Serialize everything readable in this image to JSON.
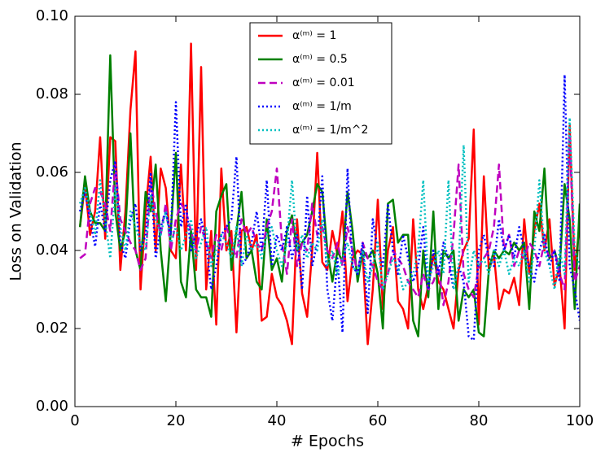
{
  "chart_data": {
    "type": "line",
    "xlabel": "# Epochs",
    "ylabel": "Loss on Validation",
    "xlim": [
      0,
      100
    ],
    "xticks": [
      0,
      20,
      40,
      60,
      80,
      100
    ],
    "ylim": [
      0,
      0.1
    ],
    "yticks": [
      {
        "value": 0,
        "label": "0.00"
      },
      0.02,
      0.04,
      0.06,
      0.08,
      {
        "value": 0.1,
        "label": "0.10"
      }
    ],
    "legend": "upper center",
    "x": [
      1,
      2,
      3,
      4,
      5,
      6,
      7,
      8,
      9,
      10,
      11,
      12,
      13,
      14,
      15,
      16,
      17,
      18,
      19,
      20,
      21,
      22,
      23,
      24,
      25,
      26,
      27,
      28,
      29,
      30,
      31,
      32,
      33,
      34,
      35,
      36,
      37,
      38,
      39,
      40,
      41,
      42,
      43,
      44,
      45,
      46,
      47,
      48,
      49,
      50,
      51,
      52,
      53,
      54,
      55,
      56,
      57,
      58,
      59,
      60,
      61,
      62,
      63,
      64,
      65,
      66,
      67,
      68,
      69,
      70,
      71,
      72,
      73,
      74,
      75,
      76,
      77,
      78,
      79,
      80,
      81,
      82,
      83,
      84,
      85,
      86,
      87,
      88,
      89,
      90,
      91,
      92,
      93,
      94,
      95,
      96,
      97,
      98,
      99,
      100
    ],
    "series": [
      {
        "name": "α⁽ᵐ⁾ = 1",
        "color": "#ff0000",
        "dash": "solid",
        "values": [
          0.046,
          0.057,
          0.044,
          0.05,
          0.069,
          0.043,
          0.069,
          0.068,
          0.035,
          0.05,
          0.076,
          0.091,
          0.03,
          0.05,
          0.064,
          0.04,
          0.061,
          0.056,
          0.04,
          0.038,
          0.062,
          0.04,
          0.093,
          0.035,
          0.087,
          0.03,
          0.045,
          0.021,
          0.061,
          0.04,
          0.045,
          0.019,
          0.045,
          0.046,
          0.04,
          0.044,
          0.022,
          0.023,
          0.034,
          0.028,
          0.026,
          0.022,
          0.016,
          0.048,
          0.029,
          0.023,
          0.04,
          0.065,
          0.037,
          0.035,
          0.045,
          0.039,
          0.05,
          0.027,
          0.038,
          0.04,
          0.039,
          0.016,
          0.03,
          0.053,
          0.025,
          0.04,
          0.046,
          0.027,
          0.025,
          0.02,
          0.048,
          0.03,
          0.025,
          0.031,
          0.039,
          0.032,
          0.03,
          0.025,
          0.02,
          0.035,
          0.04,
          0.043,
          0.071,
          0.021,
          0.059,
          0.035,
          0.039,
          0.025,
          0.03,
          0.029,
          0.033,
          0.026,
          0.048,
          0.034,
          0.045,
          0.052,
          0.04,
          0.048,
          0.031,
          0.036,
          0.02,
          0.072,
          0.035,
          0.047
        ]
      },
      {
        "name": "α⁽ᵐ⁾ = 0.5",
        "color": "#008000",
        "dash": "solid",
        "values": [
          0.046,
          0.059,
          0.05,
          0.047,
          0.047,
          0.045,
          0.09,
          0.05,
          0.04,
          0.045,
          0.07,
          0.04,
          0.035,
          0.055,
          0.05,
          0.062,
          0.04,
          0.027,
          0.045,
          0.065,
          0.032,
          0.028,
          0.045,
          0.03,
          0.028,
          0.028,
          0.023,
          0.05,
          0.054,
          0.057,
          0.035,
          0.045,
          0.055,
          0.038,
          0.04,
          0.032,
          0.03,
          0.048,
          0.035,
          0.038,
          0.032,
          0.045,
          0.049,
          0.04,
          0.042,
          0.044,
          0.05,
          0.057,
          0.055,
          0.04,
          0.032,
          0.04,
          0.037,
          0.055,
          0.045,
          0.032,
          0.04,
          0.038,
          0.04,
          0.034,
          0.02,
          0.052,
          0.053,
          0.042,
          0.044,
          0.044,
          0.022,
          0.018,
          0.04,
          0.028,
          0.05,
          0.025,
          0.04,
          0.038,
          0.04,
          0.022,
          0.03,
          0.028,
          0.03,
          0.019,
          0.018,
          0.035,
          0.04,
          0.038,
          0.04,
          0.039,
          0.042,
          0.04,
          0.042,
          0.025,
          0.05,
          0.045,
          0.061,
          0.038,
          0.04,
          0.035,
          0.057,
          0.048,
          0.025,
          0.052
        ]
      },
      {
        "name": "α⁽ᵐ⁾ = 0.01",
        "color": "#bf00bf",
        "dash": "dashed",
        "values": [
          0.038,
          0.039,
          0.052,
          0.056,
          0.055,
          0.052,
          0.045,
          0.062,
          0.048,
          0.045,
          0.042,
          0.04,
          0.035,
          0.038,
          0.058,
          0.05,
          0.044,
          0.052,
          0.04,
          0.048,
          0.052,
          0.05,
          0.045,
          0.04,
          0.046,
          0.042,
          0.038,
          0.044,
          0.04,
          0.046,
          0.042,
          0.038,
          0.048,
          0.044,
          0.046,
          0.042,
          0.04,
          0.046,
          0.05,
          0.061,
          0.042,
          0.034,
          0.048,
          0.036,
          0.042,
          0.04,
          0.052,
          0.044,
          0.046,
          0.04,
          0.038,
          0.042,
          0.036,
          0.046,
          0.04,
          0.034,
          0.042,
          0.038,
          0.036,
          0.032,
          0.03,
          0.034,
          0.04,
          0.038,
          0.036,
          0.032,
          0.03,
          0.028,
          0.034,
          0.03,
          0.032,
          0.036,
          0.026,
          0.032,
          0.044,
          0.062,
          0.034,
          0.03,
          0.028,
          0.036,
          0.038,
          0.04,
          0.046,
          0.062,
          0.04,
          0.044,
          0.036,
          0.04,
          0.038,
          0.042,
          0.04,
          0.036,
          0.042,
          0.038,
          0.04,
          0.034,
          0.03,
          0.07,
          0.032,
          0.036
        ]
      },
      {
        "name": "α⁽ᵐ⁾ = 1/m",
        "color": "#0000ff",
        "dash": "dotted",
        "values": [
          0.05,
          0.055,
          0.048,
          0.041,
          0.052,
          0.045,
          0.058,
          0.063,
          0.042,
          0.038,
          0.048,
          0.052,
          0.04,
          0.044,
          0.06,
          0.038,
          0.046,
          0.05,
          0.044,
          0.078,
          0.046,
          0.052,
          0.04,
          0.044,
          0.048,
          0.042,
          0.03,
          0.036,
          0.044,
          0.046,
          0.048,
          0.064,
          0.036,
          0.038,
          0.042,
          0.05,
          0.04,
          0.058,
          0.036,
          0.044,
          0.04,
          0.046,
          0.038,
          0.044,
          0.03,
          0.054,
          0.036,
          0.042,
          0.059,
          0.03,
          0.022,
          0.038,
          0.019,
          0.061,
          0.036,
          0.034,
          0.042,
          0.024,
          0.048,
          0.04,
          0.036,
          0.052,
          0.04,
          0.034,
          0.044,
          0.038,
          0.032,
          0.036,
          0.046,
          0.03,
          0.04,
          0.034,
          0.042,
          0.038,
          0.03,
          0.036,
          0.032,
          0.018,
          0.017,
          0.04,
          0.044,
          0.038,
          0.036,
          0.048,
          0.04,
          0.044,
          0.038,
          0.046,
          0.04,
          0.036,
          0.032,
          0.04,
          0.044,
          0.036,
          0.04,
          0.032,
          0.085,
          0.036,
          0.03,
          0.022
        ]
      },
      {
        "name": "α⁽ᵐ⁾ = 1/m^2",
        "color": "#00bfbf",
        "dash": "dotted",
        "values": [
          0.052,
          0.056,
          0.05,
          0.044,
          0.058,
          0.048,
          0.038,
          0.056,
          0.046,
          0.04,
          0.05,
          0.046,
          0.042,
          0.04,
          0.054,
          0.048,
          0.044,
          0.05,
          0.042,
          0.046,
          0.04,
          0.044,
          0.048,
          0.038,
          0.042,
          0.046,
          0.036,
          0.04,
          0.044,
          0.042,
          0.038,
          0.046,
          0.036,
          0.044,
          0.04,
          0.042,
          0.038,
          0.044,
          0.046,
          0.04,
          0.036,
          0.042,
          0.058,
          0.04,
          0.044,
          0.038,
          0.042,
          0.04,
          0.048,
          0.036,
          0.04,
          0.034,
          0.038,
          0.042,
          0.036,
          0.034,
          0.04,
          0.032,
          0.036,
          0.042,
          0.03,
          0.034,
          0.038,
          0.036,
          0.03,
          0.032,
          0.034,
          0.04,
          0.058,
          0.032,
          0.036,
          0.04,
          0.034,
          0.058,
          0.03,
          0.036,
          0.067,
          0.032,
          0.04,
          0.036,
          0.038,
          0.034,
          0.04,
          0.036,
          0.04,
          0.034,
          0.038,
          0.036,
          0.04,
          0.032,
          0.04,
          0.058,
          0.04,
          0.036,
          0.03,
          0.04,
          0.034,
          0.074,
          0.04,
          0.036
        ]
      }
    ]
  }
}
